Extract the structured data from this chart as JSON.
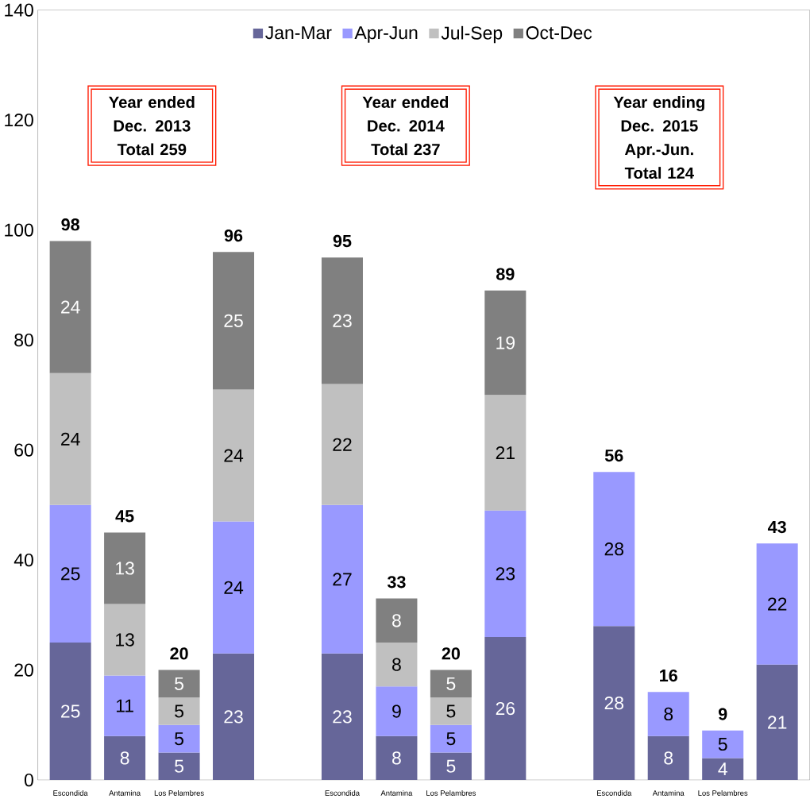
{
  "chart_data": {
    "type": "bar",
    "stacked": true,
    "data_labels": true,
    "legend": "top",
    "grid": false,
    "categories": [
      "Escondida",
      "Antamina",
      "Los Pelambres",
      null,
      null,
      "Escondida",
      "Antamina",
      "Los Pelambres",
      null,
      null,
      "Escondida",
      "Antamina",
      "Los Pelambres",
      null
    ],
    "series": [
      {
        "name": "Jan-Mar",
        "color": "#666699",
        "values": [
          25,
          8,
          5,
          23,
          null,
          23,
          8,
          5,
          26,
          null,
          28,
          8,
          4,
          21
        ]
      },
      {
        "name": "Apr-Jun",
        "color": "#9999ff",
        "values": [
          25,
          11,
          5,
          24,
          null,
          27,
          9,
          5,
          23,
          null,
          28,
          8,
          5,
          22
        ]
      },
      {
        "name": "Jul-Sep",
        "color": "#c0c0c0",
        "values": [
          24,
          13,
          5,
          24,
          null,
          22,
          8,
          5,
          21,
          null,
          null,
          null,
          null,
          null
        ]
      },
      {
        "name": "Oct-Dec",
        "color": "#808080",
        "values": [
          24,
          13,
          5,
          25,
          null,
          23,
          8,
          5,
          19,
          null,
          null,
          null,
          null,
          null
        ]
      }
    ],
    "totals": [
      "98",
      "45",
      "20",
      "96",
      null,
      "95",
      "33",
      "20",
      "89",
      null,
      "56",
      "16",
      "9",
      "43"
    ],
    "ylim": [
      0,
      140
    ],
    "yticks": [
      0,
      20,
      40,
      60,
      80,
      100,
      120,
      140
    ],
    "annotations": [
      "Year ended Dec. 2013 Total 259",
      "Year ended Dec. 2014 Total  237",
      "Year ending Dec. 2015 Apr.-Jun. Total 124"
    ]
  }
}
